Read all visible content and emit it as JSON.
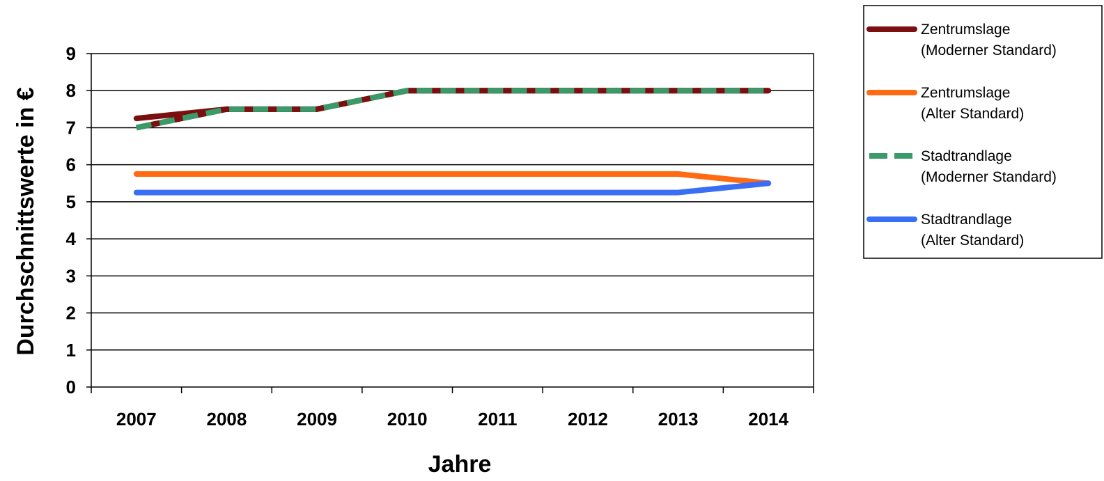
{
  "chart_data": {
    "type": "line",
    "title": "",
    "xlabel": "Jahre",
    "ylabel": "Durchschnittswerte  in €",
    "categories": [
      "2007",
      "2008",
      "2009",
      "2010",
      "2011",
      "2012",
      "2013",
      "2014"
    ],
    "yticks": [
      "0",
      "1",
      "2",
      "3",
      "4",
      "5",
      "6",
      "7",
      "8",
      "9"
    ],
    "ylim": [
      0,
      9
    ],
    "grid": true,
    "legend_position": "top-right",
    "series": [
      {
        "name_line1": "Zentrumslage",
        "name_line2": "(Moderner Standard)",
        "color": "#7b0f0f",
        "dash": "solid",
        "values": [
          7.25,
          7.5,
          7.5,
          8.0,
          8.0,
          8.0,
          8.0,
          8.0
        ]
      },
      {
        "name_line1": "Zentrumslage",
        "name_line2": "(Alter Standard)",
        "color": "#ff6a13",
        "dash": "solid",
        "values": [
          5.75,
          5.75,
          5.75,
          5.75,
          5.75,
          5.75,
          5.75,
          5.5
        ]
      },
      {
        "name_line1": "Stadtrandlage",
        "name_line2": "(Moderner Standard)",
        "color": "#3a9a6a",
        "dash": "dashed",
        "values": [
          7.0,
          7.5,
          7.5,
          8.0,
          8.0,
          8.0,
          8.0,
          8.0
        ]
      },
      {
        "name_line1": "Stadtrandlage",
        "name_line2": "(Alter Standard)",
        "color": "#3a6ff5",
        "dash": "solid",
        "values": [
          5.25,
          5.25,
          5.25,
          5.25,
          5.25,
          5.25,
          5.25,
          5.5
        ]
      }
    ]
  }
}
